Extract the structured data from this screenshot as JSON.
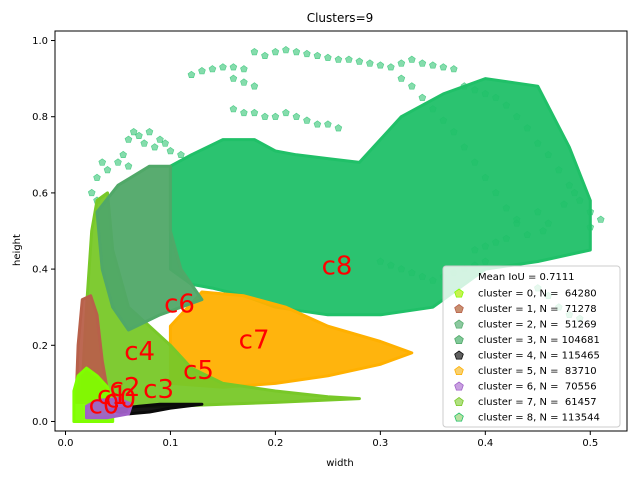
{
  "chart_data": {
    "type": "scatter",
    "title": "Clusters=9",
    "xlabel": "width",
    "ylabel": "height",
    "xlim": [
      -0.01,
      0.535
    ],
    "ylim": [
      -0.025,
      1.025
    ],
    "xticks": [
      "0.0",
      "0.1",
      "0.2",
      "0.3",
      "0.4",
      "0.5"
    ],
    "xtick_values": [
      0.0,
      0.1,
      0.2,
      0.3,
      0.4,
      0.5
    ],
    "yticks": [
      "0.0",
      "0.2",
      "0.4",
      "0.6",
      "0.8",
      "1.0"
    ],
    "ytick_values": [
      0.0,
      0.2,
      0.4,
      0.6,
      0.8,
      1.0
    ],
    "grid": false,
    "legend_position": "lower-right",
    "legend_header": "Mean IoU = 0.7111",
    "series": [
      {
        "name": "cluster = 0, N =  64280",
        "color": "#7fff00",
        "legend_color": "#c8f050",
        "marker": "pentagon",
        "region": [
          [
            0.008,
            0.0
          ],
          [
            0.008,
            0.08
          ],
          [
            0.012,
            0.12
          ],
          [
            0.02,
            0.14
          ],
          [
            0.03,
            0.12
          ],
          [
            0.04,
            0.09
          ],
          [
            0.045,
            0.05
          ],
          [
            0.045,
            0.0
          ]
        ],
        "center": [
          0.022,
          0.045
        ],
        "label": "c0"
      },
      {
        "name": "cluster = 1, N =  71278",
        "color": "#b8604a",
        "legend_color": "#c89070",
        "marker": "pentagon",
        "region": [
          [
            0.01,
            0.05
          ],
          [
            0.012,
            0.2
          ],
          [
            0.016,
            0.32
          ],
          [
            0.024,
            0.33
          ],
          [
            0.03,
            0.28
          ],
          [
            0.035,
            0.16
          ],
          [
            0.04,
            0.08
          ],
          [
            0.03,
            0.05
          ]
        ],
        "center": [
          0.03,
          0.07
        ],
        "label": "c1"
      },
      {
        "name": "cluster = 2, N =  51269",
        "color": "#58b070",
        "legend_color": "#8cc8a0",
        "marker": "pentagon",
        "region": [],
        "center": [
          0.042,
          0.09
        ],
        "label": "c2"
      },
      {
        "name": "cluster = 3, N = 104681",
        "color": "#50a868",
        "legend_color": "#80c898",
        "marker": "pentagon",
        "region": [
          [
            0.03,
            0.55
          ],
          [
            0.05,
            0.62
          ],
          [
            0.08,
            0.67
          ],
          [
            0.1,
            0.67
          ],
          [
            0.1,
            0.5
          ],
          [
            0.11,
            0.4
          ],
          [
            0.13,
            0.32
          ],
          [
            0.09,
            0.28
          ],
          [
            0.06,
            0.24
          ],
          [
            0.045,
            0.3
          ],
          [
            0.035,
            0.4
          ]
        ],
        "center": [
          0.094,
          0.31
        ],
        "label": "c6"
      },
      {
        "name": "cluster = 4, N = 115465",
        "color": "#0a0a0a",
        "legend_color": "#606060",
        "marker": "pentagon",
        "region": [
          [
            0.04,
            0.03
          ],
          [
            0.07,
            0.04
          ],
          [
            0.09,
            0.045
          ],
          [
            0.13,
            0.045
          ],
          [
            0.1,
            0.035
          ],
          [
            0.08,
            0.025
          ],
          [
            0.06,
            0.02
          ]
        ],
        "center": [
          0.074,
          0.085
        ],
        "label": "c3"
      },
      {
        "name": "cluster = 5, N =  83710",
        "color": "#ffb000",
        "legend_color": "#f8d070",
        "marker": "pentagon",
        "region": [
          [
            0.1,
            0.1
          ],
          [
            0.1,
            0.25
          ],
          [
            0.13,
            0.34
          ],
          [
            0.17,
            0.33
          ],
          [
            0.21,
            0.3
          ],
          [
            0.25,
            0.25
          ],
          [
            0.3,
            0.21
          ],
          [
            0.33,
            0.18
          ],
          [
            0.3,
            0.15
          ],
          [
            0.25,
            0.12
          ],
          [
            0.2,
            0.1
          ],
          [
            0.15,
            0.09
          ]
        ],
        "center": [
          0.165,
          0.215
        ],
        "label": "c7"
      },
      {
        "name": "cluster = 6, N =  70556",
        "color": "#a060c8",
        "legend_color": "#c8a0e0",
        "marker": "pentagon",
        "region": [
          [
            0.02,
            0.01
          ],
          [
            0.02,
            0.04
          ],
          [
            0.03,
            0.055
          ],
          [
            0.05,
            0.06
          ],
          [
            0.063,
            0.045
          ],
          [
            0.06,
            0.02
          ],
          [
            0.04,
            0.01
          ]
        ],
        "center": [
          0.038,
          0.06
        ],
        "label": "c0 "
      },
      {
        "name": "cluster = 7, N =  61457",
        "color": "#78c828",
        "legend_color": "#b0e080",
        "marker": "pentagon",
        "region": [
          [
            0.015,
            0.05
          ],
          [
            0.02,
            0.3
          ],
          [
            0.025,
            0.5
          ],
          [
            0.03,
            0.58
          ],
          [
            0.04,
            0.6
          ],
          [
            0.045,
            0.45
          ],
          [
            0.06,
            0.3
          ],
          [
            0.08,
            0.25
          ],
          [
            0.1,
            0.2
          ],
          [
            0.12,
            0.14
          ],
          [
            0.15,
            0.1
          ],
          [
            0.2,
            0.08
          ],
          [
            0.25,
            0.065
          ],
          [
            0.28,
            0.06
          ],
          [
            0.2,
            0.05
          ],
          [
            0.15,
            0.045
          ],
          [
            0.1,
            0.04
          ],
          [
            0.06,
            0.04
          ],
          [
            0.04,
            0.05
          ]
        ],
        "center": [
          0.056,
          0.185
        ],
        "label": "c4"
      },
      {
        "name": "cluster = 8, N = 113544",
        "color": "#20c068",
        "legend_color": "#b8e0a0",
        "marker": "pentagon",
        "region": [
          [
            0.1,
            0.67
          ],
          [
            0.12,
            0.7
          ],
          [
            0.15,
            0.74
          ],
          [
            0.18,
            0.74
          ],
          [
            0.2,
            0.71
          ],
          [
            0.22,
            0.7
          ],
          [
            0.25,
            0.69
          ],
          [
            0.28,
            0.68
          ],
          [
            0.32,
            0.8
          ],
          [
            0.36,
            0.86
          ],
          [
            0.4,
            0.9
          ],
          [
            0.45,
            0.88
          ],
          [
            0.48,
            0.72
          ],
          [
            0.5,
            0.58
          ],
          [
            0.5,
            0.45
          ],
          [
            0.45,
            0.42
          ],
          [
            0.4,
            0.4
          ],
          [
            0.35,
            0.3
          ],
          [
            0.3,
            0.28
          ],
          [
            0.25,
            0.28
          ],
          [
            0.2,
            0.3
          ],
          [
            0.17,
            0.33
          ],
          [
            0.14,
            0.35
          ],
          [
            0.12,
            0.36
          ],
          [
            0.1,
            0.4
          ],
          [
            0.1,
            0.5
          ]
        ],
        "center": [
          0.244,
          0.41
        ],
        "label": "c8"
      }
    ],
    "cluster_label_extra": {
      "text": "c5",
      "center": [
        0.112,
        0.135
      ]
    },
    "outliers": [
      [
        0.18,
        0.97
      ],
      [
        0.19,
        0.96
      ],
      [
        0.2,
        0.97
      ],
      [
        0.21,
        0.975
      ],
      [
        0.22,
        0.97
      ],
      [
        0.23,
        0.965
      ],
      [
        0.24,
        0.96
      ],
      [
        0.25,
        0.955
      ],
      [
        0.26,
        0.95
      ],
      [
        0.27,
        0.95
      ],
      [
        0.28,
        0.945
      ],
      [
        0.29,
        0.94
      ],
      [
        0.3,
        0.935
      ],
      [
        0.31,
        0.93
      ],
      [
        0.32,
        0.94
      ],
      [
        0.33,
        0.95
      ],
      [
        0.34,
        0.94
      ],
      [
        0.35,
        0.935
      ],
      [
        0.36,
        0.93
      ],
      [
        0.37,
        0.925
      ],
      [
        0.13,
        0.92
      ],
      [
        0.14,
        0.925
      ],
      [
        0.15,
        0.93
      ],
      [
        0.16,
        0.93
      ],
      [
        0.17,
        0.925
      ],
      [
        0.12,
        0.91
      ],
      [
        0.16,
        0.9
      ],
      [
        0.17,
        0.89
      ],
      [
        0.18,
        0.88
      ],
      [
        0.16,
        0.82
      ],
      [
        0.17,
        0.81
      ],
      [
        0.18,
        0.81
      ],
      [
        0.19,
        0.8
      ],
      [
        0.2,
        0.8
      ],
      [
        0.21,
        0.81
      ],
      [
        0.22,
        0.8
      ],
      [
        0.23,
        0.79
      ],
      [
        0.24,
        0.78
      ],
      [
        0.25,
        0.78
      ],
      [
        0.26,
        0.77
      ],
      [
        0.06,
        0.74
      ],
      [
        0.065,
        0.76
      ],
      [
        0.07,
        0.75
      ],
      [
        0.075,
        0.73
      ],
      [
        0.08,
        0.76
      ],
      [
        0.085,
        0.72
      ],
      [
        0.09,
        0.74
      ],
      [
        0.095,
        0.73
      ],
      [
        0.1,
        0.71
      ],
      [
        0.11,
        0.7
      ],
      [
        0.05,
        0.68
      ],
      [
        0.055,
        0.7
      ],
      [
        0.06,
        0.67
      ],
      [
        0.04,
        0.66
      ],
      [
        0.035,
        0.68
      ],
      [
        0.03,
        0.64
      ],
      [
        0.025,
        0.6
      ],
      [
        0.03,
        0.58
      ],
      [
        0.38,
        0.88
      ],
      [
        0.39,
        0.87
      ],
      [
        0.4,
        0.86
      ],
      [
        0.41,
        0.85
      ],
      [
        0.42,
        0.83
      ],
      [
        0.43,
        0.8
      ],
      [
        0.44,
        0.77
      ],
      [
        0.45,
        0.73
      ],
      [
        0.46,
        0.7
      ],
      [
        0.47,
        0.66
      ],
      [
        0.48,
        0.62
      ],
      [
        0.49,
        0.58
      ],
      [
        0.5,
        0.55
      ],
      [
        0.51,
        0.53
      ],
      [
        0.5,
        0.51
      ],
      [
        0.485,
        0.6
      ],
      [
        0.475,
        0.57
      ],
      [
        0.455,
        0.5
      ],
      [
        0.44,
        0.49
      ],
      [
        0.43,
        0.52
      ],
      [
        0.42,
        0.48
      ],
      [
        0.41,
        0.47
      ],
      [
        0.4,
        0.46
      ],
      [
        0.39,
        0.45
      ],
      [
        0.32,
        0.9
      ],
      [
        0.33,
        0.88
      ],
      [
        0.34,
        0.85
      ],
      [
        0.35,
        0.82
      ],
      [
        0.36,
        0.79
      ],
      [
        0.37,
        0.76
      ],
      [
        0.38,
        0.72
      ],
      [
        0.39,
        0.68
      ],
      [
        0.4,
        0.64
      ],
      [
        0.41,
        0.6
      ],
      [
        0.42,
        0.56
      ],
      [
        0.43,
        0.53
      ],
      [
        0.45,
        0.55
      ],
      [
        0.46,
        0.52
      ],
      [
        0.3,
        0.42
      ],
      [
        0.31,
        0.41
      ],
      [
        0.32,
        0.4
      ],
      [
        0.33,
        0.39
      ],
      [
        0.34,
        0.38
      ],
      [
        0.35,
        0.37
      ],
      [
        0.36,
        0.38
      ],
      [
        0.37,
        0.39
      ],
      [
        0.38,
        0.4
      ],
      [
        0.39,
        0.41
      ],
      [
        0.4,
        0.42
      ],
      [
        0.45,
        0.35
      ],
      [
        0.46,
        0.33
      ],
      [
        0.47,
        0.3
      ],
      [
        0.48,
        0.28
      ],
      [
        0.49,
        0.27
      ]
    ]
  }
}
